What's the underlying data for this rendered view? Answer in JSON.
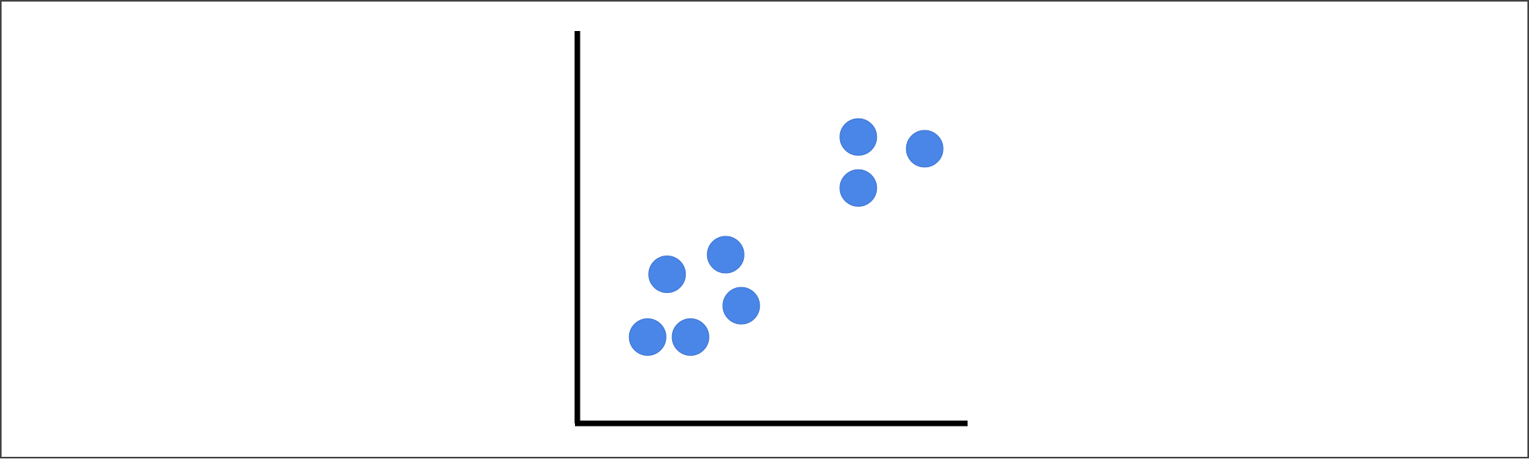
{
  "chart_data": {
    "type": "scatter",
    "title": "",
    "xlabel": "",
    "ylabel": "",
    "xlim": [
      0,
      10
    ],
    "ylim": [
      0,
      10
    ],
    "grid": false,
    "legend": "none",
    "x": [
      1.8,
      2.3,
      2.9,
      3.8,
      4.2,
      7.2,
      7.2,
      8.9
    ],
    "y": [
      2.2,
      3.8,
      2.2,
      4.3,
      3.0,
      7.3,
      6.0,
      7.0
    ],
    "marker_color": "#4A86E8",
    "axis_color": "#000000"
  }
}
